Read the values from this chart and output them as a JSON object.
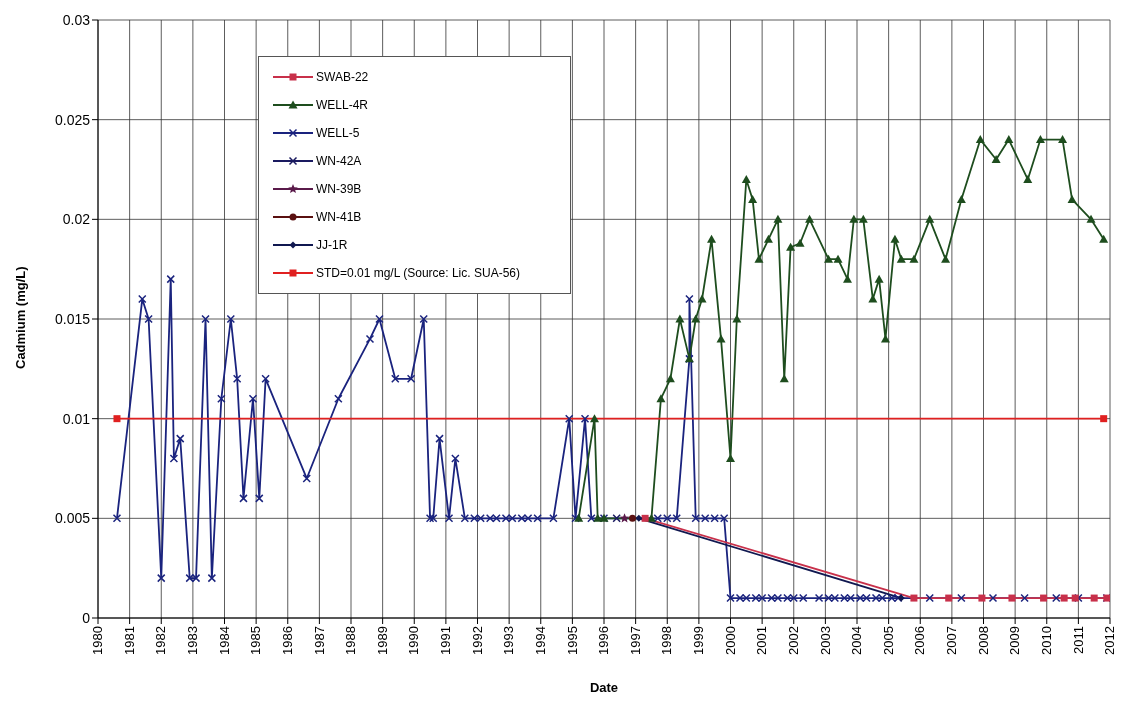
{
  "chart_data": {
    "type": "line",
    "xlabel": "Date",
    "ylabel": "Cadmium (mg/L)",
    "xlim": [
      1980,
      2012
    ],
    "xticks": [
      1980,
      1981,
      1982,
      1983,
      1984,
      1985,
      1986,
      1987,
      1988,
      1989,
      1990,
      1991,
      1992,
      1993,
      1994,
      1995,
      1996,
      1997,
      1998,
      1999,
      2000,
      2001,
      2002,
      2003,
      2004,
      2005,
      2006,
      2007,
      2008,
      2009,
      2010,
      2011,
      2012
    ],
    "ylim": [
      0,
      0.03
    ],
    "yticks": [
      0,
      0.005,
      0.01,
      0.015,
      0.02,
      0.025,
      0.03
    ],
    "grid": true,
    "legend": "top left",
    "series": [
      {
        "name": "SWAB-22",
        "color": "#c8304a",
        "marker": "square",
        "x": [
          1997.3,
          2005.8,
          2006.9,
          2007.95,
          2008.9,
          2009.9,
          2010.55,
          2010.9,
          2011.5,
          2011.9
        ],
        "values": [
          0.005,
          0.001,
          0.001,
          0.001,
          0.001,
          0.001,
          0.001,
          0.001,
          0.001,
          0.001
        ]
      },
      {
        "name": "WELL-4R",
        "color": "#1e4d1e",
        "marker": "triangle",
        "x": [
          1995.2,
          1995.7,
          1995.8,
          1996.0,
          1997.5,
          1997.8,
          1998.1,
          1998.4,
          1998.7,
          1998.9,
          1999.1,
          1999.4,
          1999.7,
          2000.0,
          2000.2,
          2000.5,
          2000.7,
          2000.9,
          2001.2,
          2001.5,
          2001.7,
          2001.9,
          2002.2,
          2002.5,
          2003.1,
          2003.4,
          2003.7,
          2003.9,
          2004.2,
          2004.5,
          2004.7,
          2004.9,
          2005.2,
          2005.4,
          2005.8,
          2006.3,
          2006.8,
          2007.3,
          2007.9,
          2008.4,
          2008.8,
          2009.4,
          2009.8,
          2010.5,
          2010.8,
          2011.4,
          2011.8
        ],
        "values": [
          0.005,
          0.01,
          0.005,
          0.005,
          0.005,
          0.011,
          0.012,
          0.015,
          0.013,
          0.015,
          0.016,
          0.019,
          0.014,
          0.008,
          0.015,
          0.022,
          0.021,
          0.018,
          0.019,
          0.02,
          0.012,
          0.0186,
          0.0188,
          0.02,
          0.018,
          0.018,
          0.017,
          0.02,
          0.02,
          0.016,
          0.017,
          0.014,
          0.019,
          0.018,
          0.018,
          0.02,
          0.018,
          0.021,
          0.024,
          0.023,
          0.024,
          0.022,
          0.024,
          0.024,
          0.021,
          0.02,
          0.019
        ]
      },
      {
        "name": "WELL-5",
        "color": "#1a237e",
        "marker": "cross",
        "x": [
          1980.6,
          1981.4,
          1981.6,
          1982.0,
          1982.3,
          1982.4,
          1982.6,
          1982.9,
          1983.1,
          1983.4,
          1983.6,
          1983.9,
          1984.2,
          1984.4,
          1984.6,
          1984.9,
          1985.1,
          1985.3,
          1986.6,
          1987.6,
          1988.6,
          1988.9,
          1989.4,
          1989.9,
          1990.3,
          1990.5,
          1990.6,
          1990.8,
          1991.1,
          1991.3,
          1991.6,
          1991.9,
          1992.1,
          1992.4,
          1992.6,
          1992.9,
          1993.1,
          1993.4,
          1993.6,
          1993.9,
          1994.4,
          1994.9,
          1995.1,
          1995.4,
          1995.6,
          1996.0,
          1997.7,
          1998.0,
          1998.3,
          1998.7,
          1998.7,
          1998.9,
          1999.2,
          1999.5,
          1999.8,
          2000.0,
          2000.3,
          2000.5,
          2000.8,
          2001.0,
          2001.3,
          2001.5,
          2001.8,
          2002.0,
          2002.3,
          2002.8,
          2003.1,
          2003.3,
          2003.6,
          2003.8,
          2004.1,
          2004.3,
          2004.6,
          2004.8,
          2005.1,
          2005.3,
          2006.3,
          2007.3,
          2008.3,
          2009.3,
          2010.3,
          2011.0,
          2011.9
        ],
        "values": [
          0.005,
          0.016,
          0.015,
          0.002,
          0.017,
          0.008,
          0.009,
          0.002,
          0.002,
          0.015,
          0.002,
          0.011,
          0.015,
          0.012,
          0.006,
          0.011,
          0.006,
          0.012,
          0.007,
          0.011,
          0.014,
          0.015,
          0.012,
          0.012,
          0.015,
          0.005,
          0.005,
          0.009,
          0.005,
          0.008,
          0.005,
          0.005,
          0.005,
          0.005,
          0.005,
          0.005,
          0.005,
          0.005,
          0.005,
          0.005,
          0.005,
          0.01,
          0.005,
          0.01,
          0.005,
          0.005,
          0.005,
          0.005,
          0.005,
          0.013,
          0.016,
          0.005,
          0.005,
          0.005,
          0.005,
          0.001,
          0.001,
          0.001,
          0.001,
          0.001,
          0.001,
          0.001,
          0.001,
          0.001,
          0.001,
          0.001,
          0.001,
          0.001,
          0.001,
          0.001,
          0.001,
          0.001,
          0.001,
          0.001,
          0.001,
          0.001,
          0.001,
          0.001,
          0.001,
          0.001,
          0.001,
          0.001,
          0.001
        ]
      },
      {
        "name": "WN-42A",
        "color": "#1a1a60",
        "marker": "cross",
        "x": [
          1996.4
        ],
        "values": [
          0.005
        ]
      },
      {
        "name": "WN-39B",
        "color": "#5a1a4a",
        "marker": "star",
        "x": [
          1996.65
        ],
        "values": [
          0.005
        ]
      },
      {
        "name": "WN-41B",
        "color": "#5a1010",
        "marker": "circle",
        "x": [
          1996.9
        ],
        "values": [
          0.005
        ]
      },
      {
        "name": "JJ-1R",
        "color": "#101850",
        "marker": "diamond",
        "x": [
          1997.1,
          2005.4
        ],
        "values": [
          0.005,
          0.001
        ]
      },
      {
        "name": "STD=0.01 mg/L (Source: Lic. SUA-56)",
        "color": "#e02020",
        "marker": "square",
        "x": [
          1980.6,
          2011.8
        ],
        "values": [
          0.01,
          0.01
        ]
      }
    ]
  }
}
